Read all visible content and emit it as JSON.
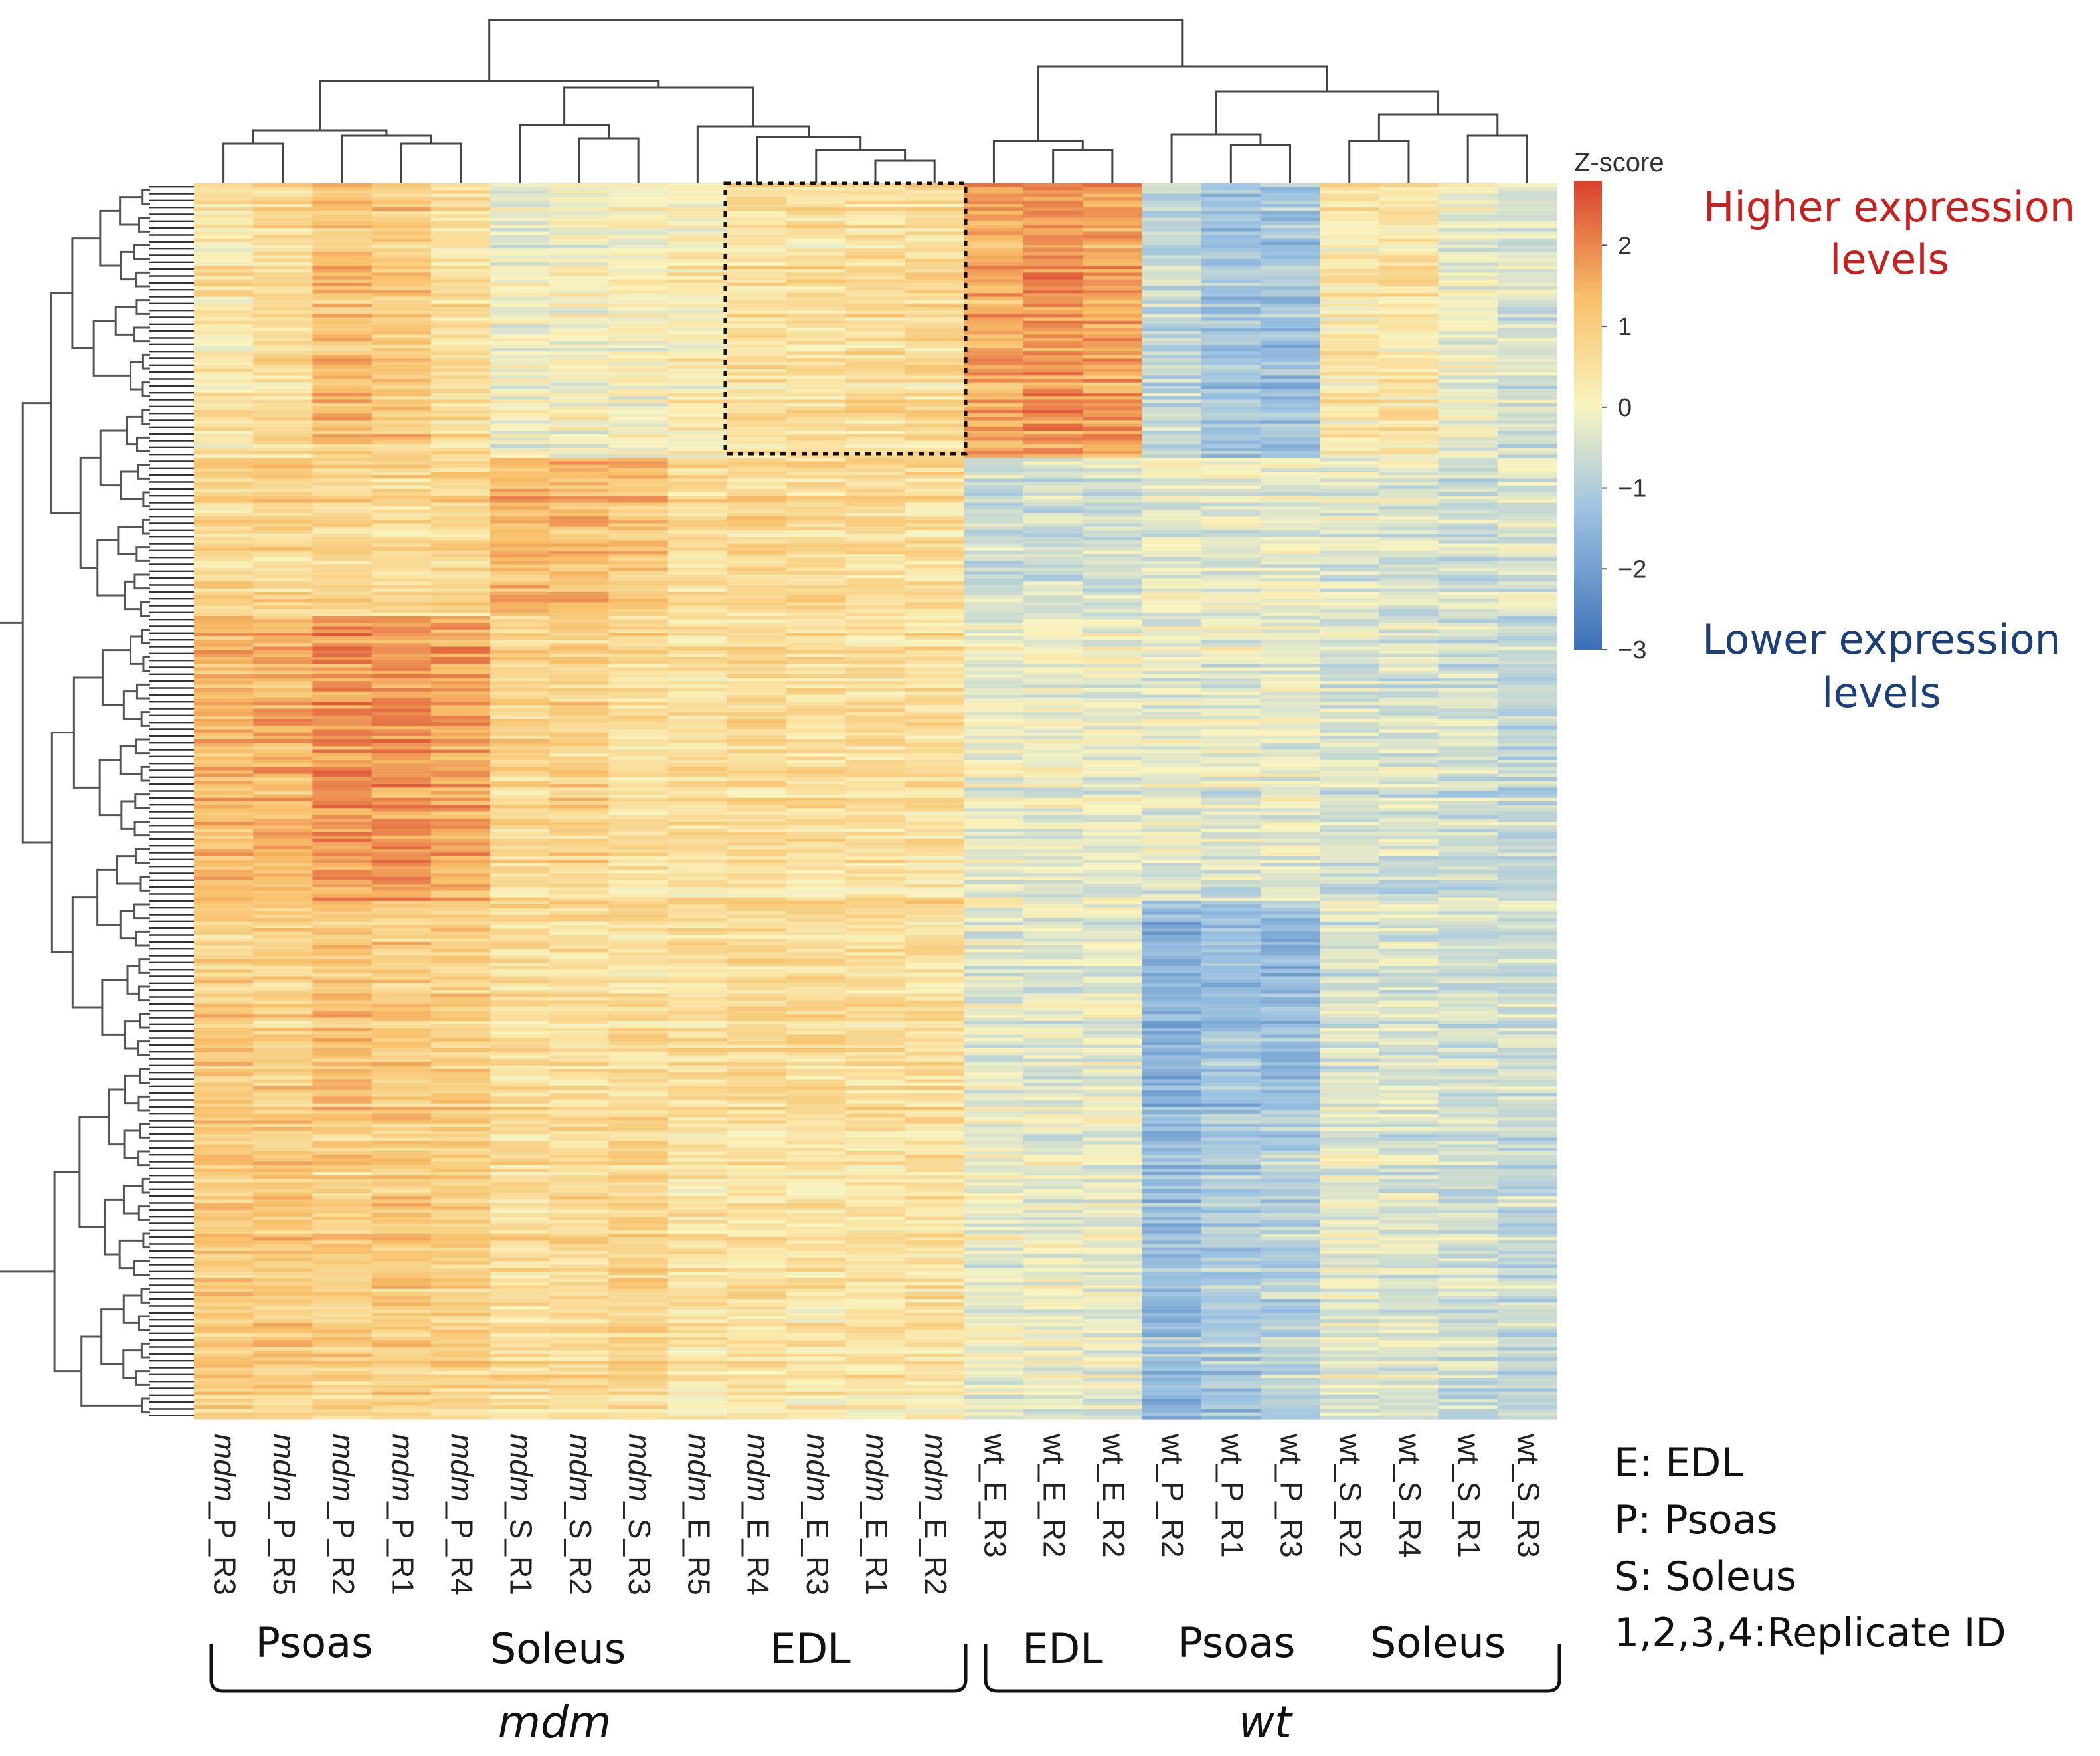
{
  "chart_data": {
    "type": "heatmap",
    "colorbar": {
      "title": "Z-score",
      "ticks": [
        2,
        1,
        0,
        -1,
        -2,
        -3
      ],
      "tick_labels": [
        "2",
        "1",
        "0",
        "−1",
        "−2",
        "−3"
      ],
      "range": [
        -3,
        2.8
      ],
      "colors": [
        "#3b6fb6",
        "#9ec3e2",
        "#f9f4c0",
        "#f8c06b",
        "#d9402c"
      ]
    },
    "columns": [
      "mdm_P_R3",
      "mdm_P_R5",
      "mdm_P_R2",
      "mdm_P_R1",
      "mdm_P_R4",
      "mdm_S_R1",
      "mdm_S_R2",
      "mdm_S_R3",
      "mdm_E_R5",
      "mdm_E_R4",
      "mdm_E_R3",
      "mdm_E_R1",
      "mdm_E_R2",
      "wt_E_R3",
      "wt_E_R2",
      "wt_E_R2",
      "wt_P_R2",
      "wt_P_R1",
      "wt_P_R3",
      "wt_S_R2",
      "wt_S_R4",
      "wt_S_R1",
      "wt_S_R3"
    ],
    "column_means": [
      0.9,
      0.9,
      1.1,
      1.1,
      1.0,
      0.6,
      0.7,
      0.6,
      0.5,
      0.6,
      0.6,
      0.6,
      0.6,
      -0.3,
      -0.3,
      -0.3,
      -1.0,
      -1.0,
      -1.0,
      -0.4,
      -0.4,
      -0.5,
      -0.5
    ],
    "row_blocks": [
      {
        "rows": "top",
        "values": [
          0.4,
          0.6,
          1.2,
          1.0,
          0.5,
          -0.2,
          0.0,
          0.0,
          0.2,
          0.5,
          0.5,
          0.6,
          0.6,
          1.5,
          1.8,
          1.6,
          -0.8,
          -1.2,
          -1.3,
          0.3,
          0.4,
          -0.2,
          -0.5
        ]
      },
      {
        "rows": "upper-middle",
        "values": [
          0.7,
          0.7,
          0.7,
          0.6,
          0.7,
          1.3,
          1.2,
          1.1,
          0.6,
          0.7,
          0.6,
          0.6,
          0.6,
          -0.7,
          -0.6,
          -0.6,
          -0.3,
          -0.3,
          -0.3,
          -0.4,
          -0.4,
          -0.6,
          -0.4
        ]
      },
      {
        "rows": "middle",
        "values": [
          1.3,
          1.4,
          1.8,
          1.8,
          1.6,
          0.7,
          0.8,
          0.6,
          0.5,
          0.6,
          0.5,
          0.5,
          0.5,
          -0.2,
          -0.2,
          -0.2,
          -0.3,
          -0.3,
          -0.3,
          -0.5,
          -0.5,
          -0.6,
          -0.8
        ]
      },
      {
        "rows": "lower-middle",
        "values": [
          0.9,
          0.9,
          1.2,
          1.0,
          1.0,
          0.6,
          0.6,
          0.6,
          0.6,
          0.7,
          0.6,
          0.6,
          0.6,
          -0.3,
          -0.3,
          -0.3,
          -1.6,
          -1.3,
          -1.4,
          -0.4,
          -0.4,
          -0.5,
          -0.6
        ]
      },
      {
        "rows": "bottom",
        "values": [
          1.0,
          1.0,
          0.9,
          1.0,
          0.9,
          0.6,
          0.6,
          0.8,
          0.4,
          0.4,
          0.4,
          0.4,
          0.5,
          -0.2,
          -0.2,
          -0.2,
          -1.4,
          -1.1,
          -0.9,
          -0.3,
          -0.4,
          -0.6,
          -0.7
        ]
      }
    ],
    "highlight_box_columns": [
      "mdm_E_R4",
      "mdm_E_R2"
    ],
    "groups": [
      {
        "label": "Psoas",
        "genotype": "mdm"
      },
      {
        "label": "Soleus",
        "genotype": "mdm"
      },
      {
        "label": "EDL",
        "genotype": "mdm"
      },
      {
        "label": "EDL",
        "genotype": "wt"
      },
      {
        "label": "Psoas",
        "genotype": "wt"
      },
      {
        "label": "Soleus",
        "genotype": "wt"
      }
    ],
    "genotypes": [
      "mdm",
      "wt"
    ],
    "annotations": {
      "higher": [
        "Higher expression",
        "levels"
      ],
      "lower": [
        "Lower expression",
        "levels"
      ],
      "higher_color": "#c8201e",
      "lower_color": "#1c3f7a"
    },
    "legend": [
      "E: EDL",
      "P: Psoas",
      "S: Soleus",
      "1,2,3,4:Replicate ID"
    ]
  }
}
